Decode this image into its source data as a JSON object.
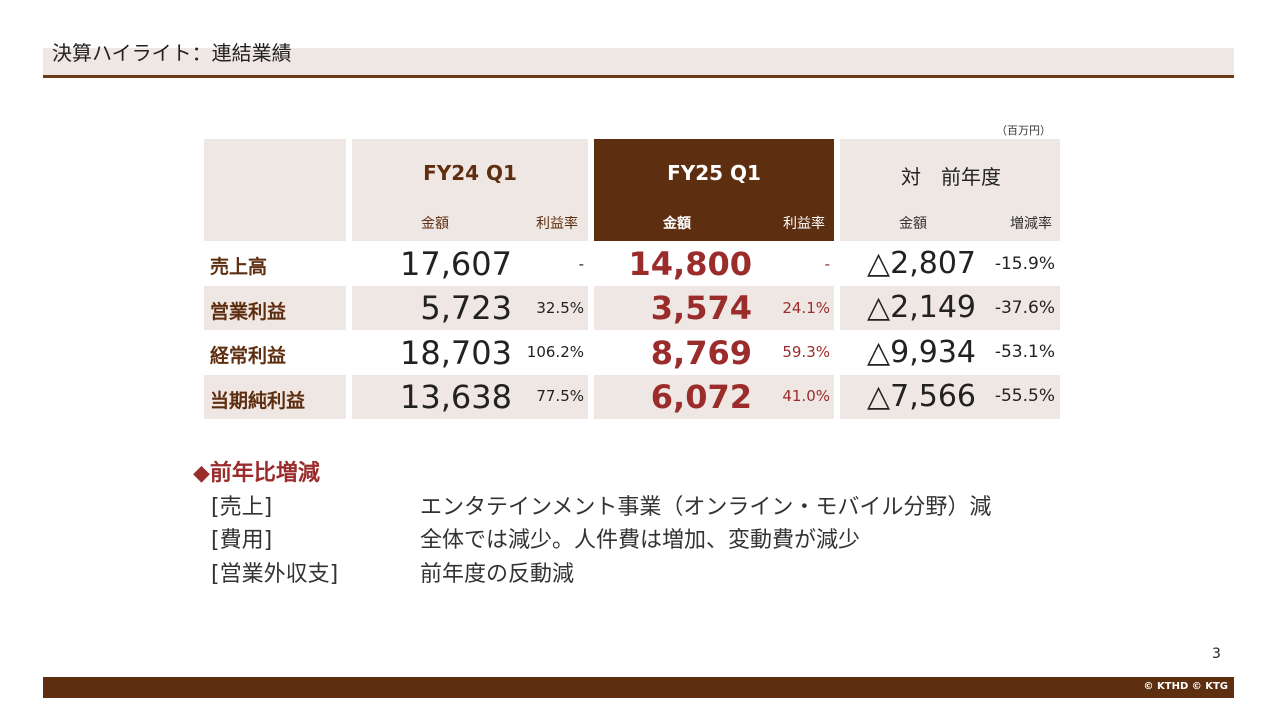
{
  "header": {
    "title": "決算ハイライト：連結業績"
  },
  "table": {
    "unit": "（百万円）",
    "columns": {
      "fy24": {
        "title": "FY24 Q1",
        "amount_label": "金額",
        "rate_label": "利益率"
      },
      "fy25": {
        "title": "FY25 Q1",
        "amount_label": "金額",
        "rate_label": "利益率"
      },
      "yoy": {
        "title": "対　前年度",
        "amount_label": "金額",
        "rate_label": "増減率"
      }
    },
    "rows": [
      {
        "label": "売上高",
        "fy24_value": "17,607",
        "fy24_rate": "-",
        "fy25_value": "14,800",
        "fy25_rate": "-",
        "yoy_value": "△2,807",
        "yoy_rate": "-15.9%"
      },
      {
        "label": "営業利益",
        "fy24_value": "5,723",
        "fy24_rate": "32.5%",
        "fy25_value": "3,574",
        "fy25_rate": "24.1%",
        "yoy_value": "△2,149",
        "yoy_rate": "-37.6%"
      },
      {
        "label": "経常利益",
        "fy24_value": "18,703",
        "fy24_rate": "106.2%",
        "fy25_value": "8,769",
        "fy25_rate": "59.3%",
        "yoy_value": "△9,934",
        "yoy_rate": "-53.1%"
      },
      {
        "label": "当期純利益",
        "fy24_value": "13,638",
        "fy24_rate": "77.5%",
        "fy25_value": "6,072",
        "fy25_rate": "41.0%",
        "yoy_value": "△7,566",
        "yoy_rate": "-55.5%"
      }
    ]
  },
  "notes": {
    "heading": "◆前年比増減",
    "items": [
      {
        "key": "[売上]",
        "text": "エンタテインメント事業（オンライン・モバイル分野）減"
      },
      {
        "key": "[費用]",
        "text": "全体では減少。人件費は増加、変動費が減少"
      },
      {
        "key": "[営業外収支]",
        "text": "前年度の反動減"
      }
    ]
  },
  "footer": {
    "page_number": "3",
    "copyright": "© KTHD © KTG"
  },
  "colors": {
    "brown": "#5e2e10",
    "light": "#eee7e3",
    "accent_red": "#9b2c2c"
  }
}
